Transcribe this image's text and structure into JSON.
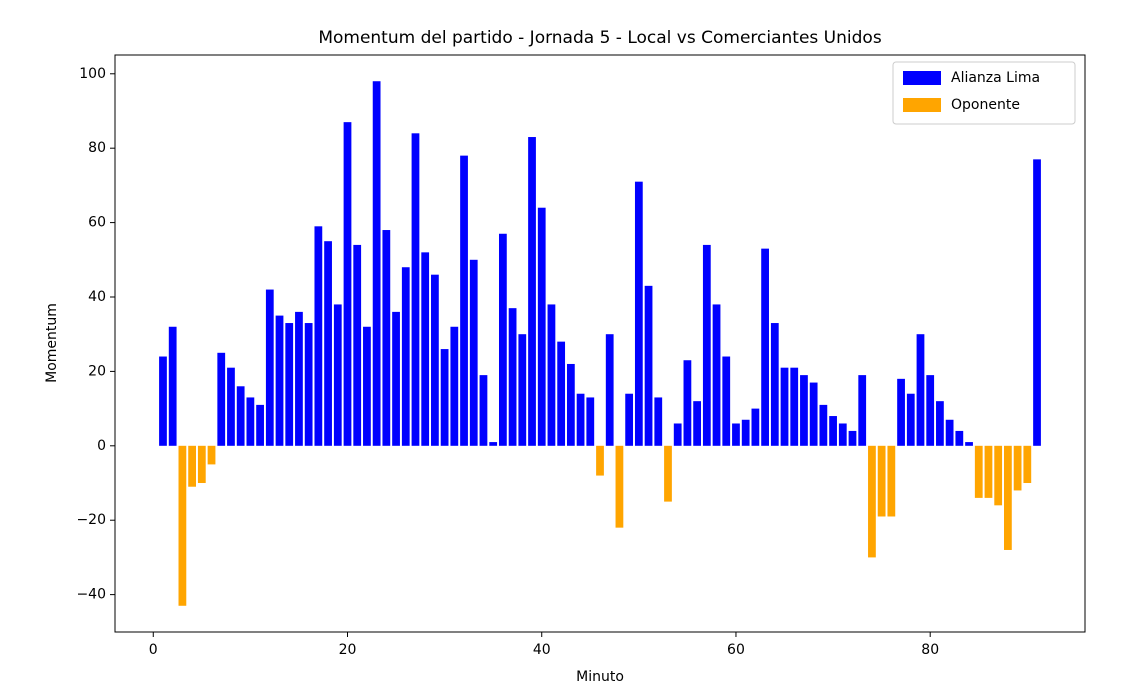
{
  "chart_data": {
    "type": "bar",
    "title": "Momentum del partido - Jornada 5 - Local vs Comerciantes Unidos",
    "xlabel": "Minuto",
    "ylabel": "Momentum",
    "x": [
      1,
      2,
      3,
      4,
      5,
      6,
      7,
      8,
      9,
      10,
      11,
      12,
      13,
      14,
      15,
      16,
      17,
      18,
      19,
      20,
      21,
      22,
      23,
      24,
      25,
      26,
      27,
      28,
      29,
      30,
      31,
      32,
      33,
      34,
      35,
      36,
      37,
      38,
      39,
      40,
      41,
      42,
      43,
      44,
      45,
      46,
      47,
      48,
      49,
      50,
      51,
      52,
      53,
      54,
      55,
      56,
      57,
      58,
      59,
      60,
      61,
      62,
      63,
      64,
      65,
      66,
      67,
      68,
      69,
      70,
      71,
      72,
      73,
      74,
      75,
      76,
      77,
      78,
      79,
      80,
      81,
      82,
      83,
      84,
      85,
      86,
      87,
      88,
      89,
      90,
      91
    ],
    "series": [
      {
        "name": "Alianza Lima",
        "color": "#0000ff",
        "values": [
          24,
          32,
          null,
          null,
          null,
          null,
          25,
          21,
          16,
          13,
          11,
          42,
          35,
          33,
          36,
          33,
          59,
          55,
          38,
          87,
          54,
          32,
          98,
          58,
          36,
          48,
          84,
          52,
          46,
          26,
          32,
          78,
          50,
          19,
          1,
          57,
          37,
          30,
          83,
          64,
          38,
          28,
          22,
          14,
          13,
          null,
          30,
          null,
          14,
          71,
          43,
          13,
          null,
          6,
          23,
          12,
          54,
          38,
          24,
          6,
          7,
          10,
          53,
          33,
          21,
          21,
          19,
          17,
          11,
          8,
          6,
          4,
          19,
          null,
          null,
          null,
          18,
          14,
          30,
          19,
          12,
          7,
          4,
          1,
          null,
          null,
          null,
          null,
          null,
          null,
          77
        ]
      },
      {
        "name": "Oponente",
        "color": "#ffa500",
        "values": [
          null,
          null,
          -43,
          -11,
          -10,
          -5,
          null,
          null,
          null,
          null,
          null,
          null,
          null,
          null,
          null,
          null,
          null,
          null,
          null,
          null,
          null,
          null,
          null,
          null,
          null,
          null,
          null,
          null,
          null,
          null,
          null,
          null,
          null,
          null,
          null,
          null,
          null,
          null,
          null,
          null,
          null,
          null,
          null,
          null,
          null,
          -8,
          null,
          -22,
          null,
          null,
          null,
          null,
          -15,
          null,
          null,
          null,
          null,
          null,
          null,
          null,
          null,
          null,
          null,
          null,
          null,
          null,
          null,
          null,
          null,
          null,
          null,
          null,
          null,
          -30,
          -19,
          -19,
          null,
          null,
          null,
          null,
          null,
          null,
          null,
          null,
          -14,
          -14,
          -16,
          -28,
          -12,
          -10,
          null
        ]
      }
    ],
    "xlim": [
      -3.94,
      95.94
    ],
    "ylim": [
      -50.05,
      105.05
    ],
    "xticks": [
      0,
      20,
      40,
      60,
      80
    ],
    "yticks": [
      {
        "value": -40,
        "label": "−40"
      },
      {
        "value": -20,
        "label": "−20"
      },
      0,
      20,
      40,
      60,
      80,
      100
    ],
    "legend": "upper right"
  }
}
